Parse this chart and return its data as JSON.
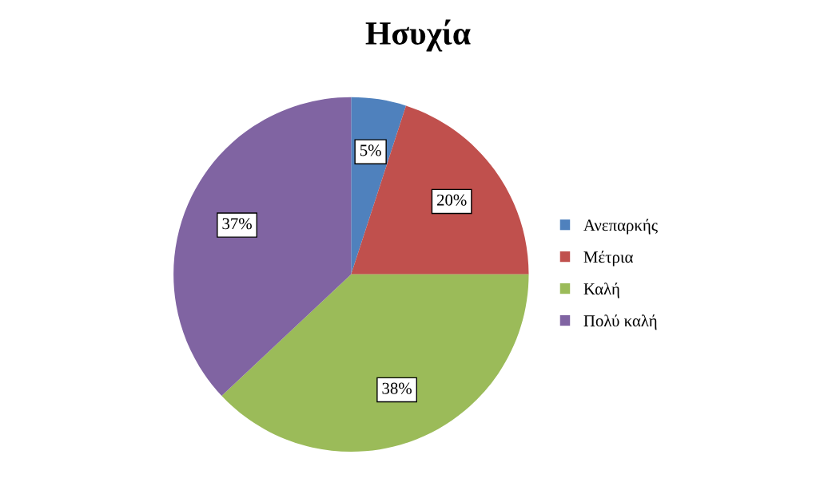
{
  "chart_data": {
    "type": "pie",
    "title": "Ησυχία",
    "categories": [
      "Ανεπαρκής",
      "Μέτρια",
      "Καλή",
      "Πολύ καλή"
    ],
    "values": [
      5,
      20,
      38,
      37
    ],
    "colors": [
      "#4f81bd",
      "#c0504d",
      "#9bbb59",
      "#8064a2"
    ],
    "value_labels": [
      "5%",
      "20%",
      "38%",
      "37%"
    ],
    "legend": "right"
  }
}
